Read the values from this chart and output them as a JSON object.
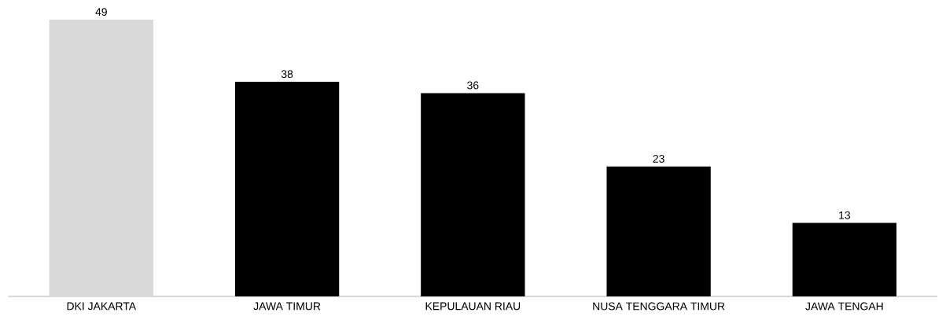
{
  "chart_data": {
    "type": "bar",
    "categories": [
      "DKI JAKARTA",
      "JAWA TIMUR",
      "KEPULAUAN RIAU",
      "NUSA TENGGARA TIMUR",
      "JAWA TENGAH"
    ],
    "values": [
      49,
      38,
      36,
      23,
      13
    ],
    "colors": [
      "#d9d9d9",
      "#000000",
      "#000000",
      "#000000",
      "#000000"
    ],
    "data_labels": true
  }
}
